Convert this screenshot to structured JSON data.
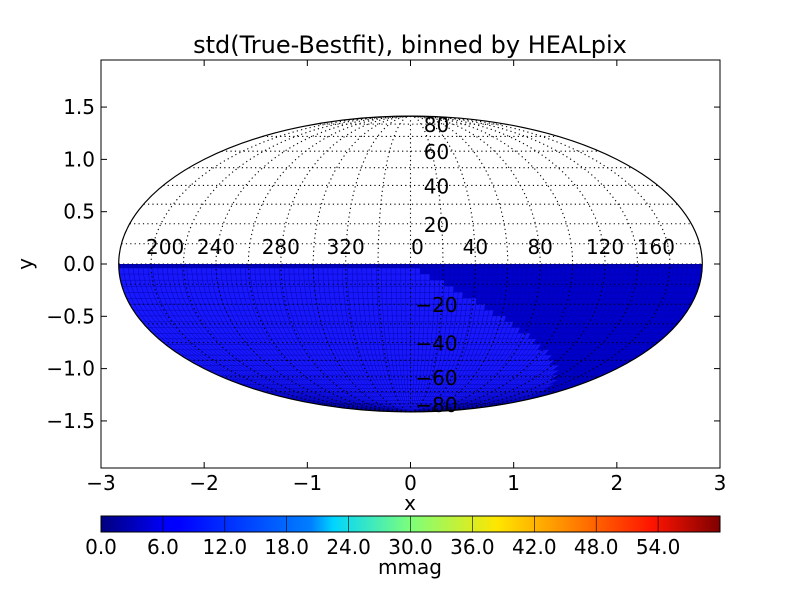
{
  "chart_data": {
    "type": "heatmap",
    "title": "std(True-Bestfit), binned by HEALpix",
    "xlabel": "x",
    "ylabel": "y",
    "xlim": [
      -3,
      3
    ],
    "ylim": [
      -1.95,
      1.95
    ],
    "xticks": [
      -3,
      -2,
      -1,
      0,
      1,
      2,
      3
    ],
    "xtick_labels": [
      "−3",
      "−2",
      "−1",
      "0",
      "1",
      "2",
      "3"
    ],
    "yticks": [
      1.5,
      1.0,
      0.5,
      0.0,
      -0.5,
      -1.0,
      -1.5
    ],
    "ytick_labels": [
      "1.5",
      "1.0",
      "0.5",
      "0.0",
      "−0.5",
      "−1.0",
      "−1.5"
    ],
    "projection": "mollweide",
    "grid": true,
    "longitude_labels": [
      "200",
      "240",
      "280",
      "320",
      "0",
      "40",
      "80",
      "120",
      "160"
    ],
    "longitude_values": [
      200,
      240,
      280,
      320,
      0,
      40,
      80,
      120,
      160
    ],
    "latitude_labels": [
      "80",
      "60",
      "40",
      "20",
      "−20",
      "−40",
      "−60",
      "−80"
    ],
    "latitude_values": [
      80,
      60,
      40,
      20,
      -20,
      -40,
      -60,
      -80
    ],
    "filled_region": "southern hemisphere",
    "fill_value_range": [
      0,
      3
    ],
    "colorbar": {
      "label": "mmag",
      "range": [
        0,
        60
      ],
      "ticks": [
        0,
        6,
        12,
        18,
        24,
        30,
        36,
        42,
        48,
        54
      ],
      "tick_labels": [
        "0.0",
        "6.0",
        "12.0",
        "18.0",
        "24.0",
        "30.0",
        "36.0",
        "42.0",
        "48.0",
        "54.0"
      ],
      "colormap": "jet",
      "placement": "bottom"
    },
    "fill_colors": {
      "low": "#00008f",
      "mid": "#0000cc",
      "high": "#1a1aff"
    }
  }
}
